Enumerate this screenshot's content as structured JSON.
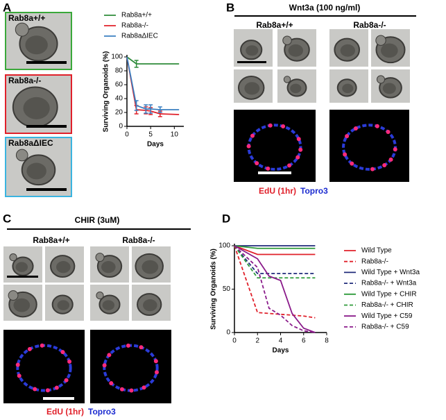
{
  "panels": {
    "A": {
      "label": "A",
      "images": [
        "Rab8a+/+",
        "Rab8a-/-",
        "Rab8aΔIEC"
      ]
    },
    "B": {
      "label": "B",
      "title": "Wnt3a (100 ng/ml)",
      "columns": [
        "Rab8a+/+",
        "Rab8a-/-"
      ],
      "stain_edu": "EdU (1hr)",
      "stain_topro": "Topro3"
    },
    "C": {
      "label": "C",
      "title": "CHIR (3uM)",
      "columns": [
        "Rab8a+/+",
        "Rab8a-/-"
      ],
      "stain_edu": "EdU (1hr)",
      "stain_topro": "Topro3"
    },
    "D": {
      "label": "D"
    }
  },
  "chart_data": [
    {
      "type": "line",
      "xlabel": "Days",
      "ylabel": "Surviving Organoids (%)",
      "xlim": [
        0,
        12
      ],
      "xticks": [
        0,
        5,
        10
      ],
      "ylim": [
        0,
        100
      ],
      "yticks": [
        0,
        20,
        40,
        60,
        80,
        100
      ],
      "legend": "top",
      "series": [
        {
          "name": "Rab8a+/+",
          "color": "#2e8b3a",
          "dashed": false,
          "x": [
            0,
            2,
            11
          ],
          "values": [
            100,
            90,
            90
          ],
          "errors": [
            0,
            5,
            0
          ]
        },
        {
          "name": "Rab8a-/-",
          "color": "#e0202a",
          "dashed": false,
          "x": [
            0,
            2,
            4,
            5,
            7,
            11
          ],
          "values": [
            100,
            24,
            23,
            22,
            18,
            17
          ],
          "errors": [
            0,
            6,
            5,
            5,
            4,
            0
          ]
        },
        {
          "name": "Rab8aΔIEC",
          "color": "#3a7fc0",
          "dashed": false,
          "x": [
            0,
            2,
            4,
            5,
            7,
            11
          ],
          "values": [
            100,
            30,
            25,
            25,
            24,
            24
          ],
          "errors": [
            0,
            7,
            6,
            6,
            4,
            0
          ]
        }
      ]
    },
    {
      "type": "line",
      "xlabel": "Days",
      "ylabel": "Surviving Organoids (%)",
      "xlim": [
        0,
        8
      ],
      "xticks": [
        0,
        2,
        4,
        6,
        8
      ],
      "ylim": [
        0,
        100
      ],
      "yticks": [
        0,
        50,
        100
      ],
      "legend": "right",
      "series": [
        {
          "name": "Wild Type",
          "color": "#e0202a",
          "dashed": false,
          "x": [
            0,
            2,
            7
          ],
          "values": [
            100,
            90,
            90
          ]
        },
        {
          "name": "Rab8a-/-",
          "color": "#e0202a",
          "dashed": true,
          "x": [
            0,
            2,
            6,
            7
          ],
          "values": [
            100,
            23,
            19,
            17
          ]
        },
        {
          "name": "Wild Type + Wnt3a",
          "color": "#1f2a7a",
          "dashed": false,
          "x": [
            0,
            7
          ],
          "values": [
            100,
            100
          ]
        },
        {
          "name": "Rab8a-/- + Wnt3a",
          "color": "#1f2a7a",
          "dashed": true,
          "x": [
            0,
            2,
            7
          ],
          "values": [
            100,
            68,
            68
          ]
        },
        {
          "name": "Wild Type + CHIR",
          "color": "#2e9a3a",
          "dashed": false,
          "x": [
            0,
            2,
            7
          ],
          "values": [
            100,
            97,
            97
          ]
        },
        {
          "name": "Rab8a-/- + CHIR",
          "color": "#2e9a3a",
          "dashed": true,
          "x": [
            0,
            2,
            7
          ],
          "values": [
            100,
            63,
            63
          ]
        },
        {
          "name": "Wild Type + C59",
          "color": "#8a1a8a",
          "dashed": false,
          "x": [
            0,
            2,
            3,
            4,
            5,
            6,
            7
          ],
          "values": [
            100,
            85,
            65,
            60,
            22,
            5,
            0
          ]
        },
        {
          "name": "Rab8a-/- + C59",
          "color": "#8a1a8a",
          "dashed": true,
          "x": [
            0,
            2,
            3,
            4,
            5,
            6,
            7
          ],
          "values": [
            100,
            75,
            28,
            20,
            8,
            2,
            0
          ]
        }
      ]
    }
  ]
}
